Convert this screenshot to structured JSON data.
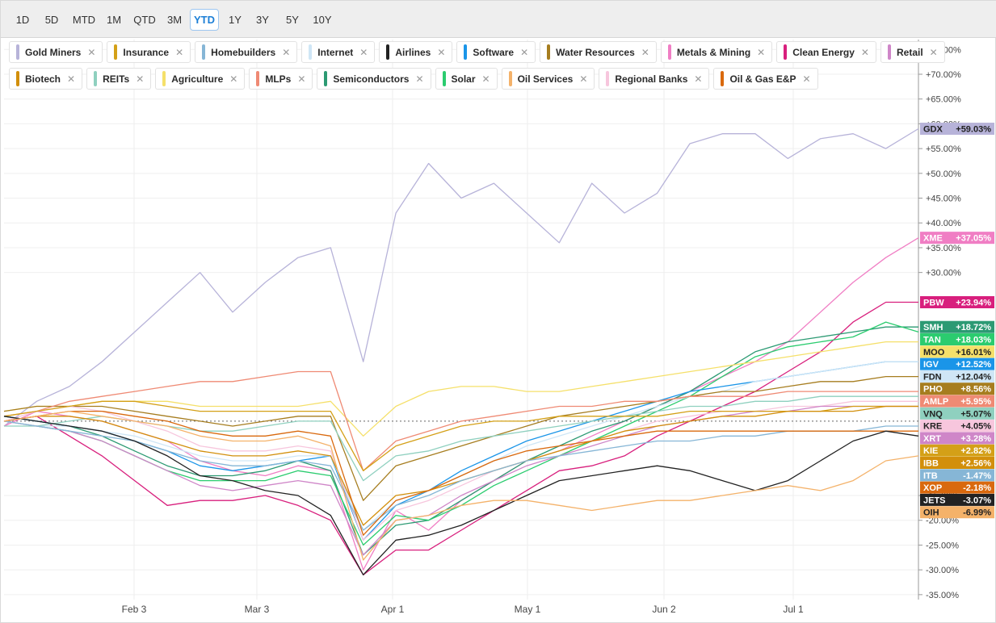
{
  "toolbar": {
    "ranges": [
      "1D",
      "5D",
      "MTD",
      "1M",
      "QTD",
      "3M",
      "YTD",
      "1Y",
      "3Y",
      "5Y",
      "10Y"
    ],
    "active": "YTD"
  },
  "legend_rows": [
    [
      {
        "name": "Gold Miners",
        "color": "#b7b3d9"
      },
      {
        "name": "Insurance",
        "color": "#d4a017"
      },
      {
        "name": "Homebuilders",
        "color": "#86b6d6"
      },
      {
        "name": "Internet",
        "color": "#cfe6f6"
      },
      {
        "name": "Airlines",
        "color": "#222222"
      },
      {
        "name": "Software",
        "color": "#1a95e8"
      },
      {
        "name": "Water Resources",
        "color": "#a67d1f"
      },
      {
        "name": "Metals & Mining",
        "color": "#f07ec4"
      },
      {
        "name": "Clean Energy",
        "color": "#d81f7d"
      },
      {
        "name": "Retail",
        "color": "#cf86c8"
      }
    ],
    [
      {
        "name": "Biotech",
        "color": "#d28f0b"
      },
      {
        "name": "REITs",
        "color": "#8fd0bf"
      },
      {
        "name": "Agriculture",
        "color": "#f5e06a"
      },
      {
        "name": "MLPs",
        "color": "#ef8a74"
      },
      {
        "name": "Semiconductors",
        "color": "#2c9a73"
      },
      {
        "name": "Solar",
        "color": "#2bcc6f"
      },
      {
        "name": "Oil Services",
        "color": "#f4b26a"
      },
      {
        "name": "Regional Banks",
        "color": "#f7c6dd"
      },
      {
        "name": "Oil & Gas E&P",
        "color": "#d9690e"
      }
    ]
  ],
  "chart_data": {
    "type": "line",
    "title": "",
    "xlabel": "",
    "ylabel": "",
    "x_ticks": [
      "Feb 3",
      "Mar 3",
      "Apr 1",
      "May 1",
      "Jun 2",
      "Jul 1"
    ],
    "y_ticks": [
      "+75.00%",
      "+70.00%",
      "+65.00%",
      "+60.00%",
      "+55.00%",
      "+50.00%",
      "+45.00%",
      "+40.00%",
      "+35.00%",
      "+30.00%",
      "-15.00%",
      "-20.00%",
      "-25.00%",
      "-30.00%",
      "-35.00%"
    ],
    "ylim": [
      -36,
      77
    ],
    "grid": true,
    "series": [
      {
        "name": "Gold Miners",
        "ticker": "GDX",
        "label": "+59.03%",
        "color": "#b7b3d9",
        "values": [
          -1,
          4,
          7,
          12,
          18,
          24,
          30,
          22,
          28,
          33,
          35,
          12,
          42,
          52,
          45,
          48,
          42,
          36,
          48,
          42,
          46,
          56,
          58,
          58,
          53,
          57,
          58,
          55,
          59
        ]
      },
      {
        "name": "Metals & Mining",
        "ticker": "XME",
        "label": "+37.05%",
        "color": "#f07ec4",
        "values": [
          -1,
          2,
          1,
          0,
          -2,
          -4,
          -8,
          -10,
          -11,
          -9,
          -10,
          -30,
          -18,
          -22,
          -16,
          -12,
          -8,
          -6,
          -3,
          0,
          3,
          6,
          9,
          12,
          16,
          22,
          28,
          33,
          37
        ]
      },
      {
        "name": "Clean Energy",
        "ticker": "PBW",
        "label": "+23.94%",
        "color": "#d81f7d",
        "values": [
          0,
          1,
          -3,
          -7,
          -12,
          -17,
          -16,
          -16,
          -15,
          -17,
          -20,
          -31,
          -26,
          -26,
          -22,
          -18,
          -14,
          -10,
          -9,
          -7,
          -3,
          0,
          3,
          6,
          10,
          14,
          20,
          24,
          24
        ]
      },
      {
        "name": "Semiconductors",
        "ticker": "SMH",
        "label": "+18.72%",
        "color": "#2c9a73",
        "values": [
          1,
          0,
          -1,
          -3,
          -6,
          -9,
          -11,
          -11,
          -10,
          -8,
          -10,
          -27,
          -21,
          -20,
          -16,
          -12,
          -8,
          -5,
          -2,
          0,
          3,
          6,
          10,
          14,
          16,
          17,
          18,
          19,
          19
        ]
      },
      {
        "name": "Solar",
        "ticker": "TAN",
        "label": "+18.03%",
        "color": "#2bcc6f",
        "values": [
          0,
          -1,
          -2,
          -4,
          -7,
          -10,
          -12,
          -12,
          -12,
          -10,
          -11,
          -25,
          -19,
          -20,
          -17,
          -13,
          -10,
          -7,
          -4,
          -1,
          2,
          5,
          9,
          13,
          15,
          16,
          17,
          20,
          18
        ]
      },
      {
        "name": "Agriculture",
        "ticker": "MOO",
        "label": "+16.01%",
        "color": "#f5e06a",
        "values": [
          2,
          3,
          3,
          4,
          4,
          4,
          3,
          3,
          3,
          3,
          4,
          -3,
          3,
          6,
          7,
          7,
          6,
          6,
          7,
          8,
          9,
          10,
          11,
          12,
          13,
          14,
          15,
          16,
          16
        ]
      },
      {
        "name": "Software",
        "ticker": "IGV",
        "label": "+12.52%",
        "color": "#1a95e8",
        "values": [
          1,
          0,
          -1,
          -2,
          -4,
          -6,
          -9,
          -10,
          -9,
          -8,
          -7,
          -24,
          -17,
          -14,
          -10,
          -7,
          -4,
          -2,
          0,
          2,
          4,
          6,
          7,
          8,
          9,
          10,
          11,
          12,
          12
        ]
      },
      {
        "name": "Internet",
        "ticker": "FDN",
        "label": "+12.04%",
        "color": "#cfe6f6",
        "values": [
          0,
          -1,
          -1,
          -2,
          -3,
          -5,
          -7,
          -8,
          -8,
          -7,
          -7,
          -22,
          -16,
          -14,
          -11,
          -8,
          -5,
          -3,
          -1,
          1,
          3,
          5,
          6,
          8,
          9,
          10,
          11,
          12,
          12
        ]
      },
      {
        "name": "Water Resources",
        "ticker": "PHO",
        "label": "+8.56%",
        "color": "#a67d1f",
        "values": [
          2,
          3,
          3,
          3,
          2,
          1,
          0,
          -1,
          0,
          1,
          1,
          -16,
          -9,
          -7,
          -5,
          -3,
          -1,
          1,
          2,
          3,
          4,
          5,
          6,
          6,
          7,
          8,
          8,
          9,
          9
        ]
      },
      {
        "name": "MLPs",
        "ticker": "AMLP",
        "label": "+5.95%",
        "color": "#ef8a74",
        "values": [
          1,
          2,
          4,
          5,
          6,
          7,
          8,
          8,
          9,
          10,
          10,
          -10,
          -4,
          -2,
          0,
          1,
          2,
          3,
          3,
          4,
          4,
          5,
          5,
          5,
          6,
          6,
          6,
          6,
          6
        ]
      },
      {
        "name": "REITs",
        "ticker": "VNQ",
        "label": "+5.07%",
        "color": "#8fd0bf",
        "values": [
          -1,
          -1,
          0,
          1,
          0,
          -1,
          -2,
          -2,
          -1,
          0,
          0,
          -12,
          -7,
          -6,
          -4,
          -3,
          -2,
          -1,
          0,
          1,
          2,
          3,
          3,
          4,
          4,
          5,
          5,
          5,
          5
        ]
      },
      {
        "name": "Regional Banks",
        "ticker": "KRE",
        "label": "+4.05%",
        "color": "#f7c6dd",
        "values": [
          0,
          2,
          3,
          2,
          0,
          -2,
          -5,
          -6,
          -6,
          -5,
          -6,
          -24,
          -18,
          -16,
          -13,
          -10,
          -8,
          -6,
          -4,
          -2,
          0,
          1,
          2,
          2,
          3,
          3,
          4,
          4,
          4
        ]
      },
      {
        "name": "Retail",
        "ticker": "XRT",
        "label": "+3.28%",
        "color": "#cf86c8",
        "values": [
          0,
          -1,
          -2,
          -4,
          -7,
          -10,
          -13,
          -14,
          -13,
          -12,
          -13,
          -27,
          -20,
          -19,
          -15,
          -12,
          -9,
          -7,
          -5,
          -3,
          -1,
          0,
          1,
          2,
          2,
          3,
          3,
          3,
          3
        ]
      },
      {
        "name": "Insurance",
        "ticker": "KIE",
        "label": "+2.82%",
        "color": "#d4a017",
        "values": [
          1,
          2,
          3,
          4,
          4,
          3,
          2,
          2,
          2,
          2,
          2,
          -10,
          -5,
          -3,
          -1,
          0,
          0,
          1,
          1,
          1,
          1,
          2,
          2,
          2,
          2,
          2,
          3,
          3,
          3
        ]
      },
      {
        "name": "Biotech",
        "ticker": "IBB",
        "label": "+2.56%",
        "color": "#d28f0b",
        "values": [
          0,
          1,
          1,
          0,
          -2,
          -4,
          -6,
          -7,
          -7,
          -6,
          -7,
          -21,
          -15,
          -14,
          -12,
          -10,
          -8,
          -6,
          -4,
          -2,
          -1,
          0,
          1,
          1,
          2,
          2,
          2,
          3,
          3
        ]
      },
      {
        "name": "Homebuilders",
        "ticker": "ITB",
        "label": "-1.47%",
        "color": "#86b6d6",
        "values": [
          0,
          -1,
          -2,
          -3,
          -4,
          -6,
          -8,
          -9,
          -9,
          -8,
          -9,
          -22,
          -17,
          -15,
          -12,
          -10,
          -8,
          -7,
          -6,
          -5,
          -4,
          -4,
          -3,
          -3,
          -2,
          -2,
          -2,
          -1,
          -1
        ]
      },
      {
        "name": "Oil & Gas E&P",
        "ticker": "XOP",
        "label": "-2.18%",
        "color": "#d9690e",
        "values": [
          0,
          1,
          2,
          2,
          1,
          0,
          -2,
          -3,
          -3,
          -2,
          -3,
          -23,
          -16,
          -14,
          -11,
          -8,
          -6,
          -5,
          -4,
          -3,
          -2,
          -2,
          -2,
          -2,
          -2,
          -2,
          -2,
          -2,
          -2
        ]
      },
      {
        "name": "Airlines",
        "ticker": "JETS",
        "label": "-3.07%",
        "color": "#222222",
        "values": [
          1,
          0,
          -1,
          -2,
          -4,
          -7,
          -11,
          -12,
          -14,
          -15,
          -19,
          -31,
          -24,
          -23,
          -21,
          -18,
          -15,
          -12,
          -11,
          -10,
          -9,
          -10,
          -12,
          -14,
          -12,
          -8,
          -4,
          -2,
          -3
        ]
      },
      {
        "name": "Oil Services",
        "ticker": "OIH",
        "label": "-6.99%",
        "color": "#f4b26a",
        "values": [
          0,
          1,
          2,
          1,
          0,
          -1,
          -3,
          -4,
          -4,
          -3,
          -5,
          -28,
          -20,
          -19,
          -17,
          -16,
          -16,
          -17,
          -18,
          -17,
          -16,
          -16,
          -15,
          -14,
          -13,
          -14,
          -12,
          -8,
          -7
        ]
      }
    ]
  }
}
